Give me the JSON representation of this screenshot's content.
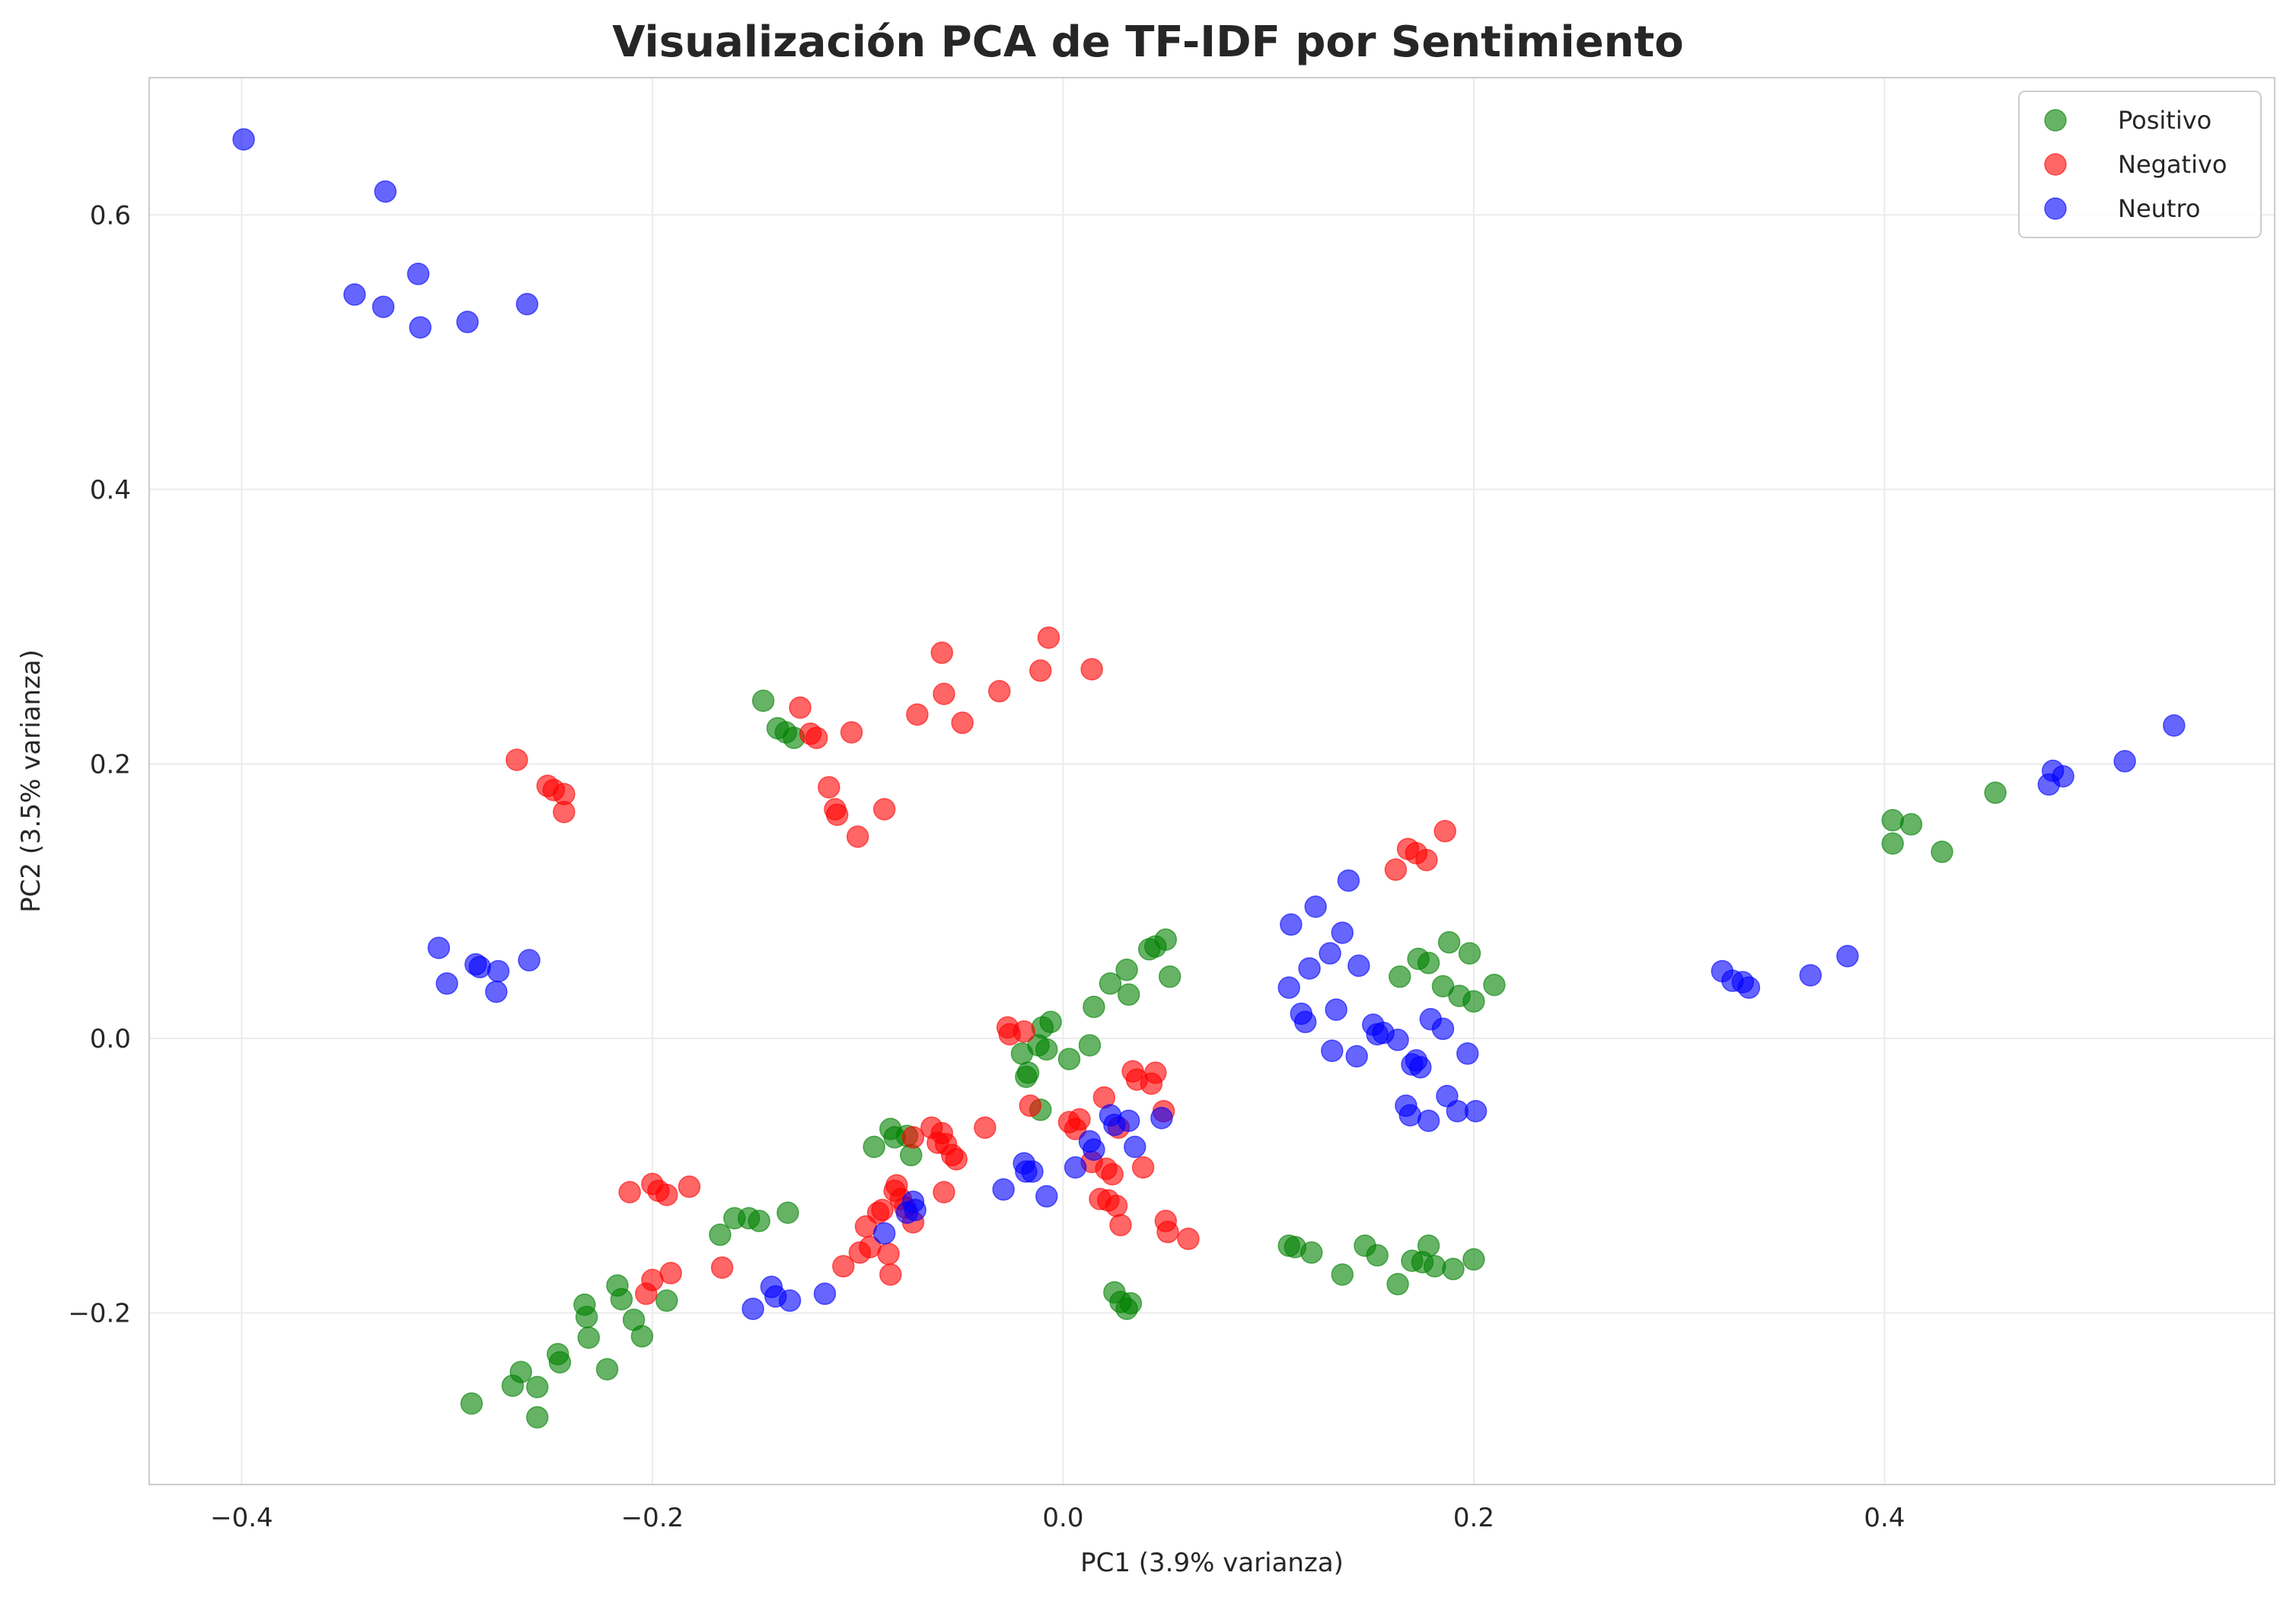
{
  "chart_data": {
    "type": "scatter",
    "title": "Visualización PCA de TF-IDF por Sentimiento",
    "xlabel": "PC1 (3.9% varianza)",
    "ylabel": "PC2 (3.5% varianza)",
    "xlim": [
      -0.445,
      0.59
    ],
    "ylim": [
      -0.325,
      0.7
    ],
    "xticks": [
      -0.4,
      -0.2,
      0.0,
      0.2,
      0.4
    ],
    "xtick_labels": [
      "−0.4",
      "−0.2",
      "0.0",
      "0.2",
      "0.4"
    ],
    "yticks": [
      -0.2,
      0.0,
      0.2,
      0.4,
      0.6
    ],
    "ytick_labels": [
      "−0.2",
      "0.0",
      "0.2",
      "0.4",
      "0.6"
    ],
    "grid": true,
    "legend_position": "top-right",
    "series": [
      {
        "name": "Positivo",
        "color": "#008000",
        "points": [
          [
            -0.146,
            0.246
          ],
          [
            -0.139,
            0.226
          ],
          [
            -0.135,
            0.223
          ],
          [
            -0.131,
            0.219
          ],
          [
            -0.288,
            -0.266
          ],
          [
            -0.268,
            -0.253
          ],
          [
            -0.264,
            -0.243
          ],
          [
            -0.256,
            -0.276
          ],
          [
            -0.256,
            -0.254
          ],
          [
            -0.246,
            -0.23
          ],
          [
            -0.245,
            -0.236
          ],
          [
            -0.233,
            -0.194
          ],
          [
            -0.232,
            -0.203
          ],
          [
            -0.231,
            -0.218
          ],
          [
            -0.222,
            -0.241
          ],
          [
            -0.217,
            -0.18
          ],
          [
            -0.215,
            -0.19
          ],
          [
            -0.209,
            -0.205
          ],
          [
            -0.205,
            -0.217
          ],
          [
            -0.193,
            -0.191
          ],
          [
            -0.167,
            -0.143
          ],
          [
            -0.16,
            -0.131
          ],
          [
            -0.153,
            -0.131
          ],
          [
            -0.148,
            -0.133
          ],
          [
            -0.134,
            -0.127
          ],
          [
            -0.092,
            -0.079
          ],
          [
            -0.084,
            -0.066
          ],
          [
            -0.082,
            -0.072
          ],
          [
            -0.076,
            -0.071
          ],
          [
            -0.074,
            -0.085
          ],
          [
            -0.02,
            -0.011
          ],
          [
            -0.018,
            -0.028
          ],
          [
            -0.017,
            -0.025
          ],
          [
            -0.012,
            -0.005
          ],
          [
            -0.011,
            -0.052
          ],
          [
            -0.01,
            0.008
          ],
          [
            -0.008,
            -0.008
          ],
          [
            -0.006,
            0.012
          ],
          [
            0.003,
            -0.015
          ],
          [
            0.013,
            -0.005
          ],
          [
            0.015,
            0.023
          ],
          [
            0.023,
            0.04
          ],
          [
            0.025,
            -0.185
          ],
          [
            0.028,
            -0.192
          ],
          [
            0.031,
            0.05
          ],
          [
            0.031,
            -0.197
          ],
          [
            0.032,
            0.032
          ],
          [
            0.033,
            -0.193
          ],
          [
            0.042,
            0.065
          ],
          [
            0.045,
            0.067
          ],
          [
            0.05,
            0.072
          ],
          [
            0.052,
            0.045
          ],
          [
            0.11,
            -0.151
          ],
          [
            0.113,
            -0.152
          ],
          [
            0.121,
            -0.156
          ],
          [
            0.136,
            -0.172
          ],
          [
            0.147,
            -0.151
          ],
          [
            0.153,
            -0.158
          ],
          [
            0.163,
            -0.179
          ],
          [
            0.164,
            0.045
          ],
          [
            0.17,
            -0.162
          ],
          [
            0.173,
            0.058
          ],
          [
            0.175,
            -0.163
          ],
          [
            0.178,
            0.055
          ],
          [
            0.178,
            -0.151
          ],
          [
            0.181,
            -0.166
          ],
          [
            0.185,
            0.038
          ],
          [
            0.188,
            0.07
          ],
          [
            0.19,
            -0.168
          ],
          [
            0.193,
            0.031
          ],
          [
            0.198,
            0.062
          ],
          [
            0.2,
            0.027
          ],
          [
            0.2,
            -0.161
          ],
          [
            0.21,
            0.039
          ],
          [
            0.404,
            0.159
          ],
          [
            0.404,
            0.142
          ],
          [
            0.413,
            0.156
          ],
          [
            0.428,
            0.136
          ],
          [
            0.454,
            0.179
          ]
        ]
      },
      {
        "name": "Negativo",
        "color": "#ff0000",
        "points": [
          [
            -0.266,
            0.203
          ],
          [
            -0.251,
            0.184
          ],
          [
            -0.248,
            0.181
          ],
          [
            -0.243,
            0.178
          ],
          [
            -0.243,
            0.165
          ],
          [
            -0.128,
            0.241
          ],
          [
            -0.123,
            0.222
          ],
          [
            -0.12,
            0.219
          ],
          [
            -0.114,
            0.183
          ],
          [
            -0.111,
            0.167
          ],
          [
            -0.11,
            0.163
          ],
          [
            -0.103,
            0.223
          ],
          [
            -0.1,
            0.147
          ],
          [
            -0.087,
            0.167
          ],
          [
            -0.071,
            0.236
          ],
          [
            -0.059,
            0.281
          ],
          [
            -0.058,
            0.251
          ],
          [
            -0.049,
            0.23
          ],
          [
            -0.031,
            0.253
          ],
          [
            -0.011,
            0.268
          ],
          [
            -0.007,
            0.292
          ],
          [
            0.014,
            0.269
          ],
          [
            -0.211,
            -0.112
          ],
          [
            -0.2,
            -0.106
          ],
          [
            -0.197,
            -0.111
          ],
          [
            -0.193,
            -0.114
          ],
          [
            -0.182,
            -0.108
          ],
          [
            -0.203,
            -0.186
          ],
          [
            -0.2,
            -0.176
          ],
          [
            -0.191,
            -0.171
          ],
          [
            -0.166,
            -0.167
          ],
          [
            -0.107,
            -0.166
          ],
          [
            -0.099,
            -0.156
          ],
          [
            -0.096,
            -0.137
          ],
          [
            -0.094,
            -0.152
          ],
          [
            -0.09,
            -0.127
          ],
          [
            -0.088,
            -0.125
          ],
          [
            -0.085,
            -0.157
          ],
          [
            -0.084,
            -0.172
          ],
          [
            -0.082,
            -0.111
          ],
          [
            -0.081,
            -0.107
          ],
          [
            -0.079,
            -0.117
          ],
          [
            -0.077,
            -0.123
          ],
          [
            -0.073,
            -0.134
          ],
          [
            -0.073,
            -0.072
          ],
          [
            -0.064,
            -0.065
          ],
          [
            -0.061,
            -0.076
          ],
          [
            -0.059,
            -0.069
          ],
          [
            -0.058,
            -0.112
          ],
          [
            -0.057,
            -0.077
          ],
          [
            -0.054,
            -0.085
          ],
          [
            -0.052,
            -0.088
          ],
          [
            -0.038,
            -0.065
          ],
          [
            -0.027,
            0.008
          ],
          [
            -0.026,
            0.003
          ],
          [
            -0.019,
            0.005
          ],
          [
            -0.016,
            -0.049
          ],
          [
            0.003,
            -0.061
          ],
          [
            0.006,
            -0.066
          ],
          [
            0.008,
            -0.059
          ],
          [
            0.014,
            -0.09
          ],
          [
            0.018,
            -0.117
          ],
          [
            0.02,
            -0.043
          ],
          [
            0.021,
            -0.095
          ],
          [
            0.022,
            -0.118
          ],
          [
            0.024,
            -0.099
          ],
          [
            0.026,
            -0.122
          ],
          [
            0.027,
            -0.065
          ],
          [
            0.028,
            -0.136
          ],
          [
            0.034,
            -0.024
          ],
          [
            0.036,
            -0.03
          ],
          [
            0.039,
            -0.094
          ],
          [
            0.043,
            -0.033
          ],
          [
            0.045,
            -0.025
          ],
          [
            0.049,
            -0.053
          ],
          [
            0.05,
            -0.133
          ],
          [
            0.051,
            -0.141
          ],
          [
            0.061,
            -0.146
          ],
          [
            0.162,
            0.123
          ],
          [
            0.168,
            0.138
          ],
          [
            0.172,
            0.135
          ],
          [
            0.177,
            0.13
          ],
          [
            0.186,
            0.151
          ]
        ]
      },
      {
        "name": "Neutro",
        "color": "#0000ff",
        "points": [
          [
            -0.399,
            0.655
          ],
          [
            -0.33,
            0.617
          ],
          [
            -0.314,
            0.557
          ],
          [
            -0.345,
            0.542
          ],
          [
            -0.331,
            0.533
          ],
          [
            -0.313,
            0.518
          ],
          [
            -0.29,
            0.522
          ],
          [
            -0.261,
            0.535
          ],
          [
            -0.304,
            0.066
          ],
          [
            -0.3,
            0.04
          ],
          [
            -0.286,
            0.054
          ],
          [
            -0.284,
            0.052
          ],
          [
            -0.276,
            0.034
          ],
          [
            -0.275,
            0.049
          ],
          [
            -0.26,
            0.057
          ],
          [
            -0.151,
            -0.197
          ],
          [
            -0.142,
            -0.181
          ],
          [
            -0.14,
            -0.188
          ],
          [
            -0.133,
            -0.191
          ],
          [
            -0.116,
            -0.186
          ],
          [
            -0.087,
            -0.142
          ],
          [
            -0.076,
            -0.127
          ],
          [
            -0.073,
            -0.119
          ],
          [
            -0.072,
            -0.125
          ],
          [
            -0.029,
            -0.11
          ],
          [
            -0.019,
            -0.091
          ],
          [
            -0.018,
            -0.097
          ],
          [
            -0.015,
            -0.097
          ],
          [
            -0.008,
            -0.115
          ],
          [
            0.006,
            -0.094
          ],
          [
            0.013,
            -0.075
          ],
          [
            0.015,
            -0.081
          ],
          [
            0.023,
            -0.056
          ],
          [
            0.025,
            -0.063
          ],
          [
            0.032,
            -0.06
          ],
          [
            0.035,
            -0.079
          ],
          [
            0.048,
            -0.058
          ],
          [
            0.11,
            0.037
          ],
          [
            0.111,
            0.083
          ],
          [
            0.116,
            0.018
          ],
          [
            0.118,
            0.012
          ],
          [
            0.12,
            0.051
          ],
          [
            0.123,
            0.096
          ],
          [
            0.13,
            0.062
          ],
          [
            0.131,
            -0.009
          ],
          [
            0.133,
            0.021
          ],
          [
            0.136,
            0.077
          ],
          [
            0.139,
            0.115
          ],
          [
            0.143,
            -0.013
          ],
          [
            0.144,
            0.053
          ],
          [
            0.151,
            0.01
          ],
          [
            0.153,
            0.003
          ],
          [
            0.156,
            0.004
          ],
          [
            0.163,
            -0.001
          ],
          [
            0.167,
            -0.049
          ],
          [
            0.169,
            -0.056
          ],
          [
            0.17,
            -0.019
          ],
          [
            0.172,
            -0.016
          ],
          [
            0.174,
            -0.021
          ],
          [
            0.178,
            -0.06
          ],
          [
            0.179,
            0.014
          ],
          [
            0.185,
            0.007
          ],
          [
            0.187,
            -0.042
          ],
          [
            0.192,
            -0.053
          ],
          [
            0.197,
            -0.011
          ],
          [
            0.201,
            -0.053
          ],
          [
            0.321,
            0.049
          ],
          [
            0.326,
            0.042
          ],
          [
            0.331,
            0.041
          ],
          [
            0.334,
            0.037
          ],
          [
            0.364,
            0.046
          ],
          [
            0.382,
            0.06
          ],
          [
            0.48,
            0.185
          ],
          [
            0.482,
            0.195
          ],
          [
            0.487,
            0.191
          ],
          [
            0.517,
            0.202
          ],
          [
            0.541,
            0.228
          ]
        ]
      }
    ]
  }
}
